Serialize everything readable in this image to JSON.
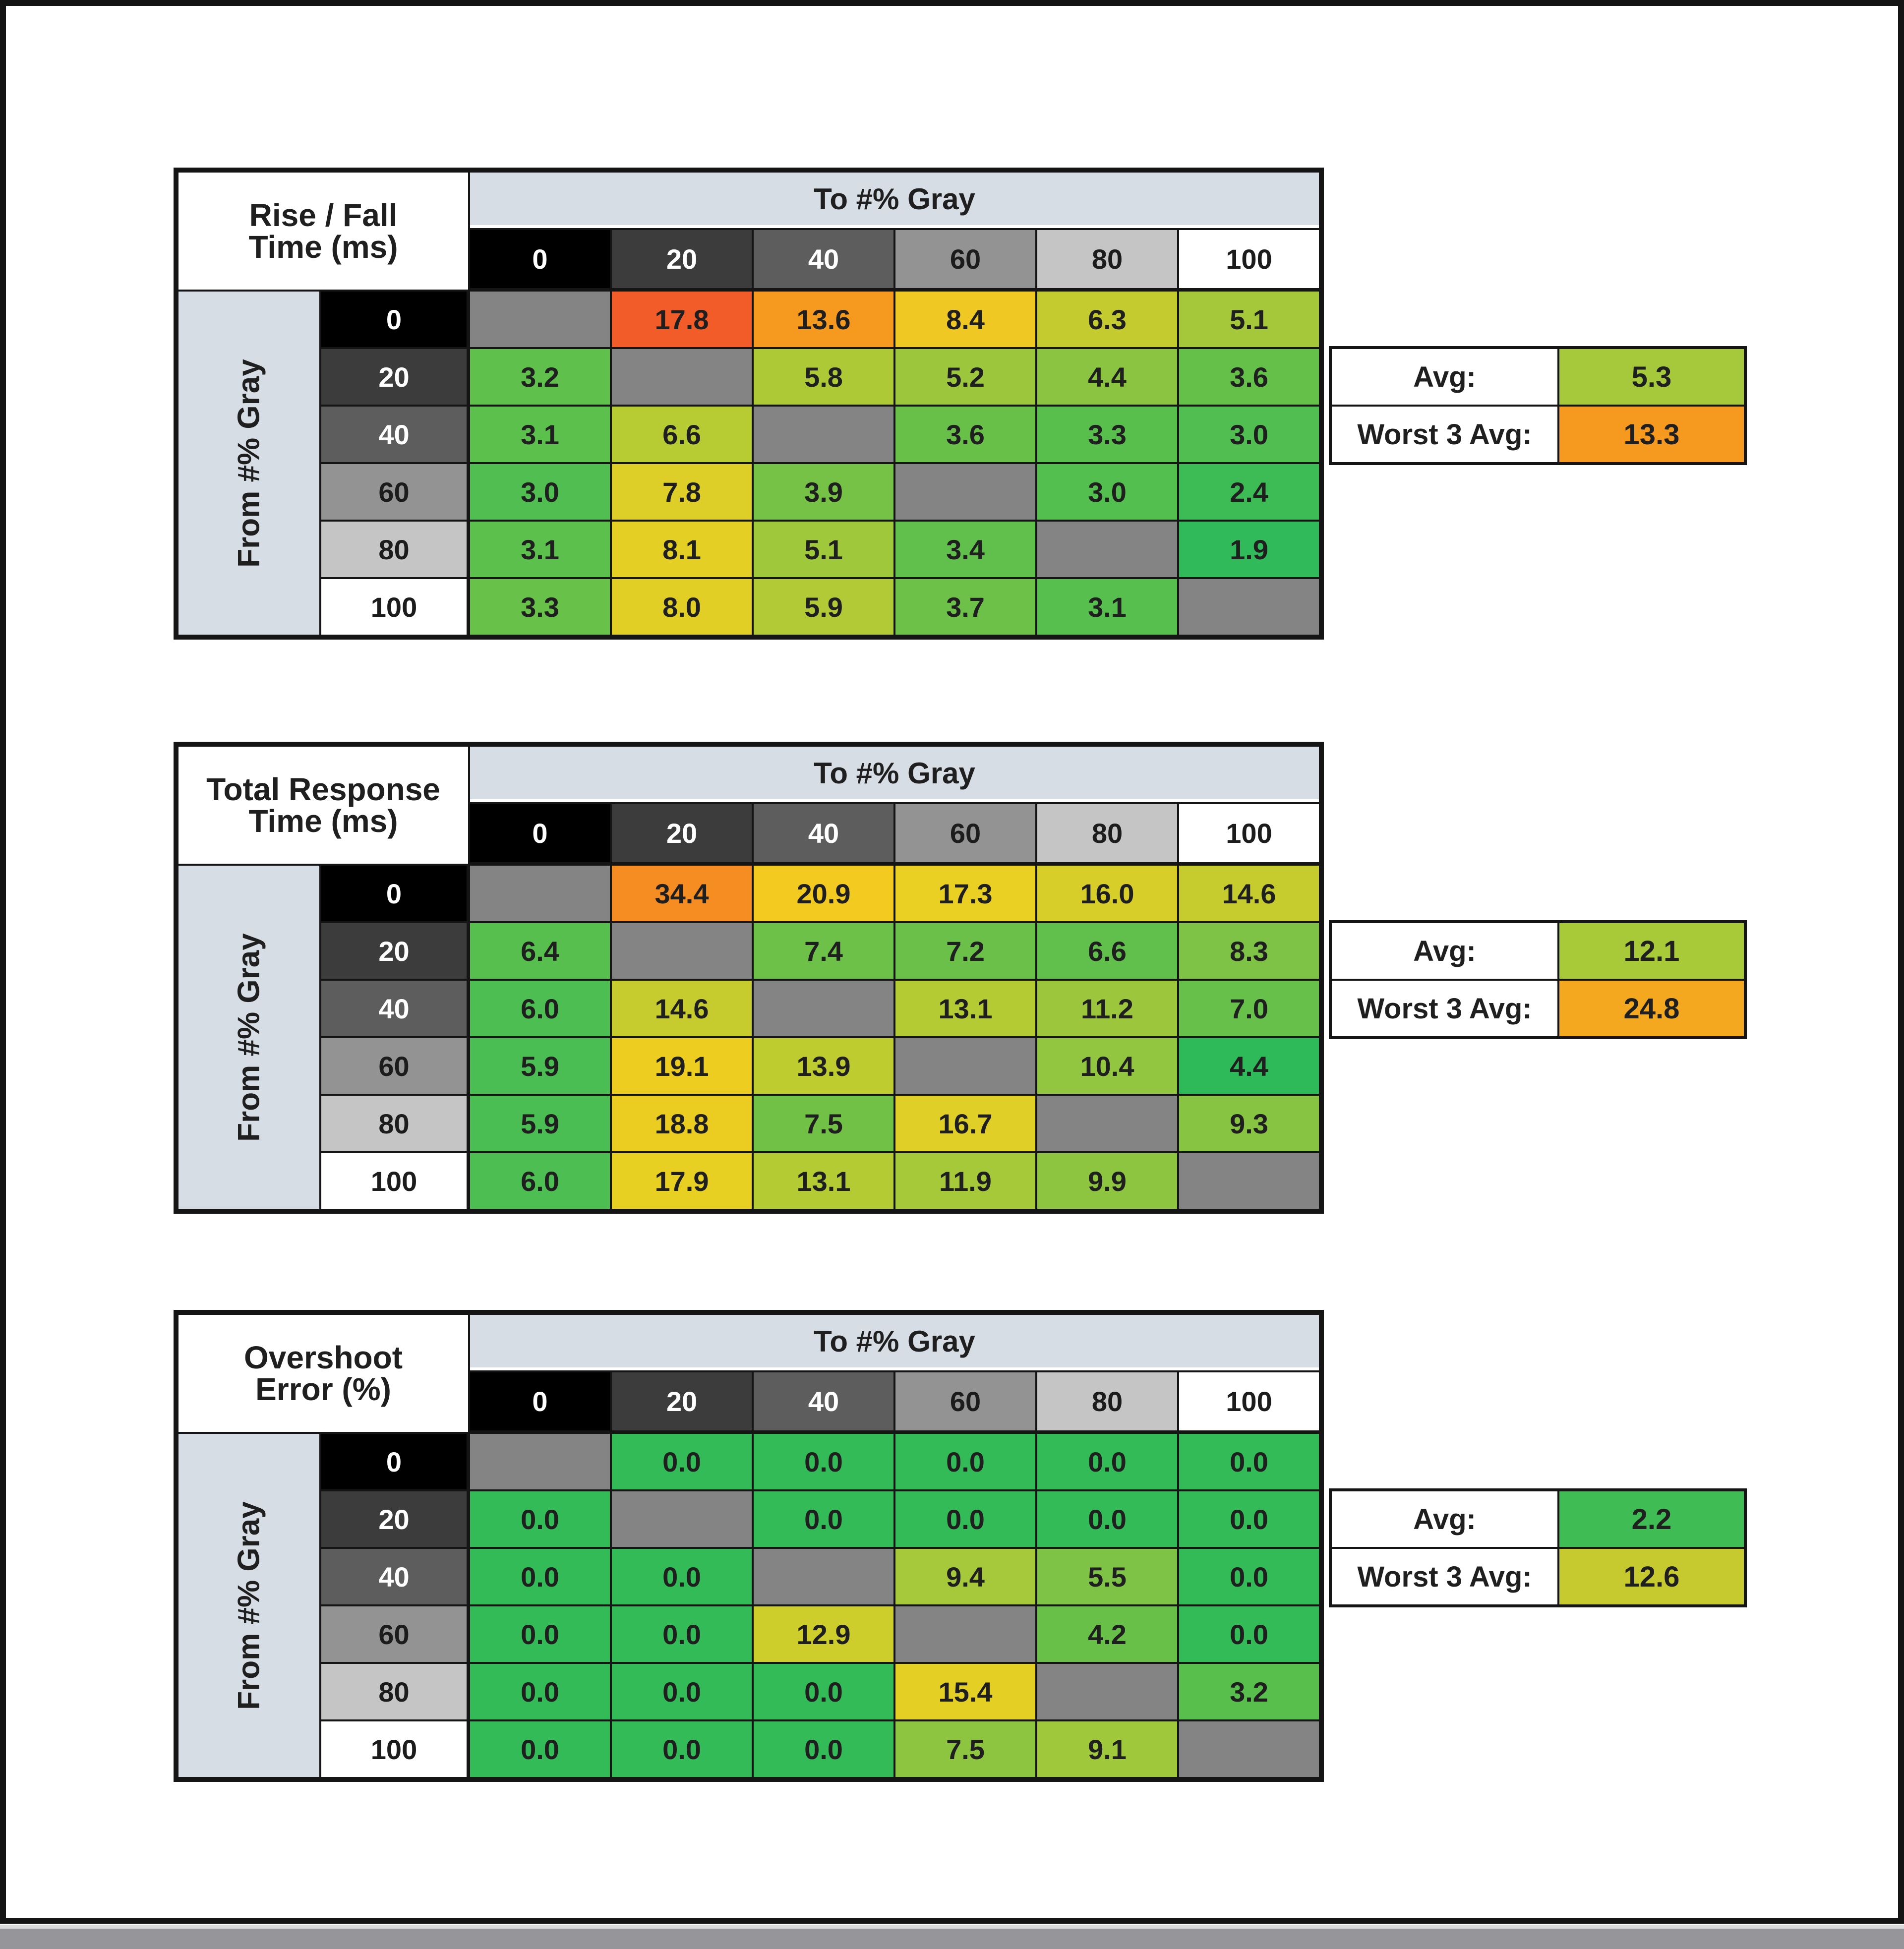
{
  "page": {
    "background": "#ffffff",
    "frame_color": "#141414",
    "bottom_bar_color": "#96969a"
  },
  "shared": {
    "to_header": "To #% Gray",
    "from_header": "From #% Gray",
    "col_labels": [
      "0",
      "20",
      "40",
      "60",
      "80",
      "100"
    ],
    "row_labels": [
      "0",
      "20",
      "40",
      "60",
      "80",
      "100"
    ],
    "label_bgs": [
      "#000000",
      "#3c3c3c",
      "#5d5d5d",
      "#939393",
      "#c5c5c5",
      "#ffffff"
    ],
    "label_fgs": [
      "#ffffff",
      "#ffffff",
      "#ffffff",
      "#1c1c1c",
      "#1c1c1c",
      "#1c1c1c"
    ],
    "header_strip_bg": "#d6dde5",
    "diagonal_bg": "#848484",
    "avg_label": "Avg:",
    "worst_label": "Worst 3 Avg:"
  },
  "tables": [
    {
      "id": "rise-fall-time",
      "title_line1": "Rise / Fall",
      "title_line2": "Time (ms)",
      "values": [
        [
          "",
          "17.8",
          "13.6",
          "8.4",
          "6.3",
          "5.1"
        ],
        [
          "3.2",
          "",
          "5.8",
          "5.2",
          "4.4",
          "3.6"
        ],
        [
          "3.1",
          "6.6",
          "",
          "3.6",
          "3.3",
          "3.0"
        ],
        [
          "3.0",
          "7.8",
          "3.9",
          "",
          "3.0",
          "2.4"
        ],
        [
          "3.1",
          "8.1",
          "5.1",
          "3.4",
          "",
          "1.9"
        ],
        [
          "3.3",
          "8.0",
          "5.9",
          "3.7",
          "3.1",
          ""
        ]
      ],
      "colors": [
        [
          "",
          "#f25c28",
          "#f69a1f",
          "#f0c824",
          "#c3cb2f",
          "#a5c83a"
        ],
        [
          "#5fc04c",
          "",
          "#adca36",
          "#9cc73d",
          "#8ac441",
          "#65c04a"
        ],
        [
          "#5cc04d",
          "#b7cb33",
          "",
          "#68c049",
          "#58bf4d",
          "#50be50"
        ],
        [
          "#50be50",
          "#ddce28",
          "#76c246",
          "",
          "#52bf4f",
          "#3dbc55"
        ],
        [
          "#5cc04d",
          "#e4d025",
          "#a0c83b",
          "#61c04b",
          "",
          "#30ba59"
        ],
        [
          "#68c149",
          "#e1cf26",
          "#b1ca35",
          "#6ec148",
          "#56bf4e",
          ""
        ]
      ],
      "avg": {
        "value": "5.3",
        "color": "#a5c93a"
      },
      "worst3": {
        "value": "13.3",
        "color": "#f69a1f"
      }
    },
    {
      "id": "total-response-time",
      "title_line1": "Total Response",
      "title_line2": "Time (ms)",
      "values": [
        [
          "",
          "34.4",
          "20.9",
          "17.3",
          "16.0",
          "14.6"
        ],
        [
          "6.4",
          "",
          "7.4",
          "7.2",
          "6.6",
          "8.3"
        ],
        [
          "6.0",
          "14.6",
          "",
          "13.1",
          "11.2",
          "7.0"
        ],
        [
          "5.9",
          "19.1",
          "13.9",
          "",
          "10.4",
          "4.4"
        ],
        [
          "5.9",
          "18.8",
          "7.5",
          "16.7",
          "",
          "9.3"
        ],
        [
          "6.0",
          "17.9",
          "13.1",
          "11.9",
          "9.9",
          ""
        ]
      ],
      "colors": [
        [
          "",
          "#f58d23",
          "#f3ca20",
          "#e9d022",
          "#d8ce29",
          "#c7cc2e"
        ],
        [
          "#56bf4e",
          "",
          "#6ec148",
          "#6bc049",
          "#60c04b",
          "#7ec345"
        ],
        [
          "#4dbe51",
          "#c7cc2e",
          "",
          "#b4cb33",
          "#9cc73d",
          "#66c04a"
        ],
        [
          "#4abe52",
          "#edcd20",
          "#bfcc30",
          "",
          "#92c540",
          "#2fba59"
        ],
        [
          "#4abe52",
          "#ebcd21",
          "#71c147",
          "#e0cf27",
          "",
          "#87c442"
        ],
        [
          "#4dbe51",
          "#e8d022",
          "#b4cb33",
          "#a6c939",
          "#8dc440",
          ""
        ]
      ],
      "avg": {
        "value": "12.1",
        "color": "#a8c938"
      },
      "worst3": {
        "value": "24.8",
        "color": "#f3a81f"
      }
    },
    {
      "id": "overshoot-error",
      "title_line1": "Overshoot",
      "title_line2": "Error (%)",
      "values": [
        [
          "",
          "0.0",
          "0.0",
          "0.0",
          "0.0",
          "0.0"
        ],
        [
          "0.0",
          "",
          "0.0",
          "0.0",
          "0.0",
          "0.0"
        ],
        [
          "0.0",
          "0.0",
          "",
          "9.4",
          "5.5",
          "0.0"
        ],
        [
          "0.0",
          "0.0",
          "12.9",
          "",
          "4.2",
          "0.0"
        ],
        [
          "0.0",
          "0.0",
          "0.0",
          "15.4",
          "",
          "3.2"
        ],
        [
          "0.0",
          "0.0",
          "0.0",
          "7.5",
          "9.1",
          ""
        ]
      ],
      "colors": [
        [
          "",
          "#33bb57",
          "#33bb57",
          "#33bb57",
          "#33bb57",
          "#33bb57"
        ],
        [
          "#33bb57",
          "",
          "#33bb57",
          "#33bb57",
          "#33bb57",
          "#33bb57"
        ],
        [
          "#33bb57",
          "#33bb57",
          "",
          "#a5c93a",
          "#7ec345",
          "#33bb57"
        ],
        [
          "#33bb57",
          "#33bb57",
          "#cdcd2c",
          "",
          "#68c049",
          "#33bb57"
        ],
        [
          "#33bb57",
          "#33bb57",
          "#33bb57",
          "#e4d025",
          "",
          "#58bf4d"
        ],
        [
          "#33bb57",
          "#33bb57",
          "#33bb57",
          "#8dc440",
          "#a0c83b",
          ""
        ]
      ],
      "avg": {
        "value": "2.2",
        "color": "#3fbd54"
      },
      "worst3": {
        "value": "12.6",
        "color": "#c6ca2e"
      }
    }
  ],
  "chart_data": [
    {
      "type": "heatmap",
      "title": "Rise / Fall Time (ms)",
      "x_label": "To #% Gray",
      "y_label": "From #% Gray",
      "x_ticks": [
        0,
        20,
        40,
        60,
        80,
        100
      ],
      "y_ticks": [
        0,
        20,
        40,
        60,
        80,
        100
      ],
      "values": [
        [
          null,
          17.8,
          13.6,
          8.4,
          6.3,
          5.1
        ],
        [
          3.2,
          null,
          5.8,
          5.2,
          4.4,
          3.6
        ],
        [
          3.1,
          6.6,
          null,
          3.6,
          3.3,
          3.0
        ],
        [
          3.0,
          7.8,
          3.9,
          null,
          3.0,
          2.4
        ],
        [
          3.1,
          8.1,
          5.1,
          3.4,
          null,
          1.9
        ],
        [
          3.3,
          8.0,
          5.9,
          3.7,
          3.1,
          null
        ]
      ],
      "avg": 5.3,
      "worst_3_avg": 13.3,
      "color_scale": "green(low) to red(high)"
    },
    {
      "type": "heatmap",
      "title": "Total Response Time (ms)",
      "x_label": "To #% Gray",
      "y_label": "From #% Gray",
      "x_ticks": [
        0,
        20,
        40,
        60,
        80,
        100
      ],
      "y_ticks": [
        0,
        20,
        40,
        60,
        80,
        100
      ],
      "values": [
        [
          null,
          34.4,
          20.9,
          17.3,
          16.0,
          14.6
        ],
        [
          6.4,
          null,
          7.4,
          7.2,
          6.6,
          8.3
        ],
        [
          6.0,
          14.6,
          null,
          13.1,
          11.2,
          7.0
        ],
        [
          5.9,
          19.1,
          13.9,
          null,
          10.4,
          4.4
        ],
        [
          5.9,
          18.8,
          7.5,
          16.7,
          null,
          9.3
        ],
        [
          6.0,
          17.9,
          13.1,
          11.9,
          9.9,
          null
        ]
      ],
      "avg": 12.1,
      "worst_3_avg": 24.8,
      "color_scale": "green(low) to red(high)"
    },
    {
      "type": "heatmap",
      "title": "Overshoot Error (%)",
      "x_label": "To #% Gray",
      "y_label": "From #% Gray",
      "x_ticks": [
        0,
        20,
        40,
        60,
        80,
        100
      ],
      "y_ticks": [
        0,
        20,
        40,
        60,
        80,
        100
      ],
      "values": [
        [
          null,
          0.0,
          0.0,
          0.0,
          0.0,
          0.0
        ],
        [
          0.0,
          null,
          0.0,
          0.0,
          0.0,
          0.0
        ],
        [
          0.0,
          0.0,
          null,
          9.4,
          5.5,
          0.0
        ],
        [
          0.0,
          0.0,
          12.9,
          null,
          4.2,
          0.0
        ],
        [
          0.0,
          0.0,
          0.0,
          15.4,
          null,
          3.2
        ],
        [
          0.0,
          0.0,
          0.0,
          7.5,
          9.1,
          null
        ]
      ],
      "avg": 2.2,
      "worst_3_avg": 12.6,
      "color_scale": "green(low) to red(high)"
    }
  ]
}
